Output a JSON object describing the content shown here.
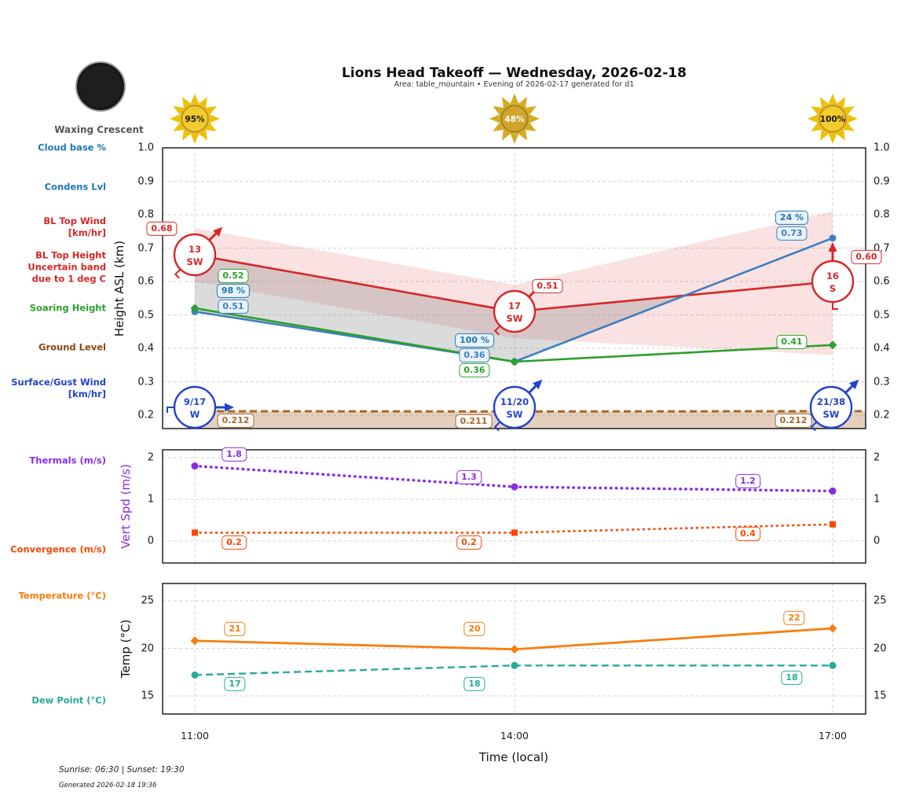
{
  "header": {
    "title": "Lions Head Takeoff — Wednesday, 2026-02-18",
    "subtitle": "Area: table_mountain • Evening of 2026-02-17 generated for d1"
  },
  "moon": {
    "phase_label": "Waxing Crescent"
  },
  "suns": [
    {
      "time": "11:00",
      "label": "95%",
      "bright": true
    },
    {
      "time": "14:00",
      "label": "48%",
      "bright": false
    },
    {
      "time": "17:00",
      "label": "100%",
      "bright": true
    }
  ],
  "labels": {
    "cloud_base": [
      "Cloud base %"
    ],
    "condens": [
      "Condens Lvl"
    ],
    "bl_top_wind": [
      "BL Top Wind",
      "[km/hr]"
    ],
    "bl_top_height": [
      "BL Top Height",
      "Uncertain band",
      "due to 1 deg C"
    ],
    "soaring": [
      "Soaring Height"
    ],
    "ground": [
      "Ground Level"
    ],
    "surface_wind": [
      "Surface/Gust Wind",
      "[km/hr]"
    ],
    "thermals": [
      "Thermals (m/s)"
    ],
    "convergence": [
      "Convergence (m/s)"
    ],
    "temperature": [
      "Temperature (°C)"
    ],
    "dew_point": [
      "Dew Point (°C)"
    ]
  },
  "colors": {
    "cloud_blue": "#1f77b4",
    "condens_line": "#3f7fbf",
    "red": "#d62728",
    "green": "#2ca02c",
    "brown_text": "#8b4513",
    "brown_line": "#a5682a",
    "surface_blue": "#2343cb",
    "purple": "#8a2be2",
    "orangered": "#ff4500",
    "orange": "#f97d0e",
    "teal": "#28a89e",
    "band_pink": "rgba(217,48,48,0.14)",
    "band_gray": "rgba(110,110,110,0.25)",
    "band_tan": "rgba(173,110,50,0.32)"
  },
  "x_axis": {
    "ticks": [
      "11:00",
      "14:00",
      "17:00"
    ],
    "label": "Time (local)"
  },
  "footer": {
    "sun_times": "Sunrise: 06:30 | Sunset: 19:30",
    "generated": "Generated 2026-02-18 19:36"
  },
  "chart_data": [
    {
      "id": "height",
      "type": "line",
      "ylabel": "Height ASL (km)",
      "ylabel_color": "#111111",
      "ylim": [
        0.16,
        1.0
      ],
      "yticks": [
        "1.0",
        "0.9",
        "0.8",
        "0.7",
        "0.6",
        "0.5",
        "0.4",
        "0.3",
        "0.2"
      ],
      "x": [
        "11:00",
        "14:00",
        "17:00"
      ],
      "grid": true,
      "series": [
        {
          "name": "BL Top Height",
          "color": "#d62728",
          "style": "solid",
          "marker": "none",
          "values": [
            0.68,
            0.51,
            0.6
          ],
          "labels": [
            "0.68",
            "0.51",
            "0.60"
          ]
        },
        {
          "name": "Condensation Level",
          "color": "#3f7fbf",
          "style": "solid",
          "marker": "circle",
          "values": [
            0.51,
            0.36,
            0.73
          ],
          "labels": [
            "0.51",
            "0.36",
            "0.73"
          ]
        },
        {
          "name": "Soaring Height",
          "color": "#2ca02c",
          "style": "solid",
          "marker": "diamond",
          "values": [
            0.52,
            0.36,
            0.41
          ],
          "labels": [
            "0.52",
            "0.36",
            "0.41"
          ]
        },
        {
          "name": "Ground Level",
          "color": "#a5682a",
          "style": "dashed",
          "marker": "none",
          "values": [
            0.212,
            0.211,
            0.212
          ],
          "labels": [
            "0.212",
            "0.211",
            "0.212"
          ],
          "fill_below": true
        }
      ],
      "cloud_base_pct": {
        "color": "#1f77b4",
        "labels": [
          "98 %",
          "100 %",
          "24 %"
        ]
      },
      "bands": [
        {
          "name": "bl-top-uncertainty",
          "color": "rgba(217,48,48,0.14)",
          "upper": [
            0.76,
            0.59,
            0.81
          ],
          "lower": [
            0.6,
            0.43,
            0.38
          ]
        },
        {
          "name": "cloud-layer",
          "color": "rgba(110,110,110,0.25)",
          "upper_series": "BL Top Height",
          "lower_series": "Condensation Level"
        }
      ],
      "wind_bl_top": [
        {
          "speed": "13",
          "dir": "SW"
        },
        {
          "speed": "17",
          "dir": "SW"
        },
        {
          "speed": "16",
          "dir": "S"
        }
      ],
      "wind_surface": [
        {
          "speed": "9/17",
          "dir": "W"
        },
        {
          "speed": "11/20",
          "dir": "SW"
        },
        {
          "speed": "21/38",
          "dir": "SW"
        }
      ]
    },
    {
      "id": "vertspd",
      "type": "line",
      "ylabel": "Vert Spd (m/s)",
      "ylabel_color": "#8a2be2",
      "ylim": [
        -0.5,
        2.2
      ],
      "yticks": [
        "2",
        "1",
        "0"
      ],
      "x": [
        "11:00",
        "14:00",
        "17:00"
      ],
      "grid": true,
      "series": [
        {
          "name": "Thermals",
          "color": "#8a2be2",
          "style": "dotted",
          "marker": "circle",
          "values": [
            1.8,
            1.3,
            1.2
          ],
          "labels": [
            "1.8",
            "1.3",
            "1.2"
          ]
        },
        {
          "name": "Convergence",
          "color": "#ff4500",
          "style": "dotted",
          "marker": "square",
          "values": [
            0.2,
            0.2,
            0.4
          ],
          "labels": [
            "0.2",
            "0.2",
            "0.4"
          ]
        }
      ]
    },
    {
      "id": "temp",
      "type": "line",
      "ylabel": "Temp (°C)",
      "ylabel_color": "#111111",
      "ylim": [
        13,
        27
      ],
      "yticks": [
        "25",
        "20",
        "15"
      ],
      "x": [
        "11:00",
        "14:00",
        "17:00"
      ],
      "grid": true,
      "series": [
        {
          "name": "Temperature",
          "color": "#f97d0e",
          "style": "solid",
          "marker": "diamond",
          "values": [
            20.8,
            19.9,
            22.1
          ],
          "labels": [
            "21",
            "20",
            "22"
          ]
        },
        {
          "name": "Dew Point",
          "color": "#28a89e",
          "style": "dashed",
          "marker": "circle",
          "values": [
            17.2,
            18.2,
            18.2
          ],
          "labels": [
            "17",
            "18",
            "18"
          ]
        }
      ]
    }
  ]
}
